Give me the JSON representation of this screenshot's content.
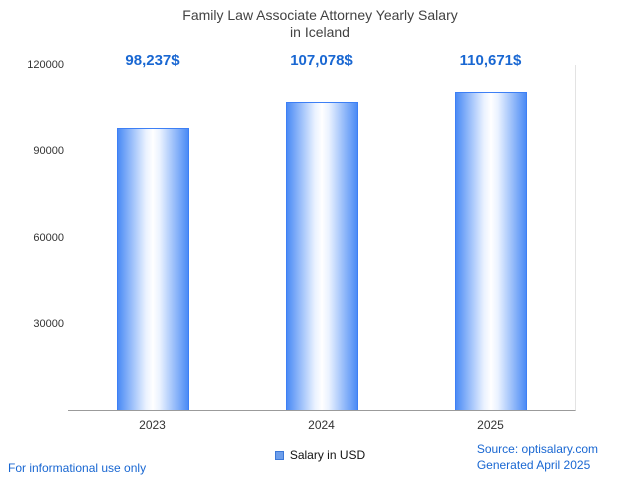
{
  "title": {
    "line1": "Family Law Associate Attorney Yearly Salary",
    "line2": "in Iceland"
  },
  "chart_data": {
    "type": "bar",
    "categories": [
      "2023",
      "2024",
      "2025"
    ],
    "values": [
      98237,
      107078,
      110671
    ],
    "value_labels": [
      "98,237$",
      "107,078$",
      "110,671$"
    ],
    "series_name": "Salary in USD",
    "title": "Family Law Associate Attorney Yearly Salary in Iceland",
    "xlabel": "",
    "ylabel": "",
    "ylim": [
      0,
      120000
    ],
    "yticks": [
      30000,
      60000,
      90000,
      120000
    ],
    "ytick_labels": [
      "30000",
      "60000",
      "90000",
      "120000"
    ],
    "grid": false,
    "legend_position": "bottom-center"
  },
  "legend": {
    "label": "Salary in USD",
    "marker": "blue-square-icon"
  },
  "footer": {
    "left": "For informational use only",
    "source": "Source: optisalary.com",
    "generated": "Generated April 2025"
  },
  "colors": {
    "accent_blue": "#1967d2",
    "bar_border": "#3d7ff5",
    "bar_edge": "#4b8bf5",
    "bar_center": "#ffffff",
    "axis_line": "#9b9b9b",
    "title_text": "#424242"
  }
}
